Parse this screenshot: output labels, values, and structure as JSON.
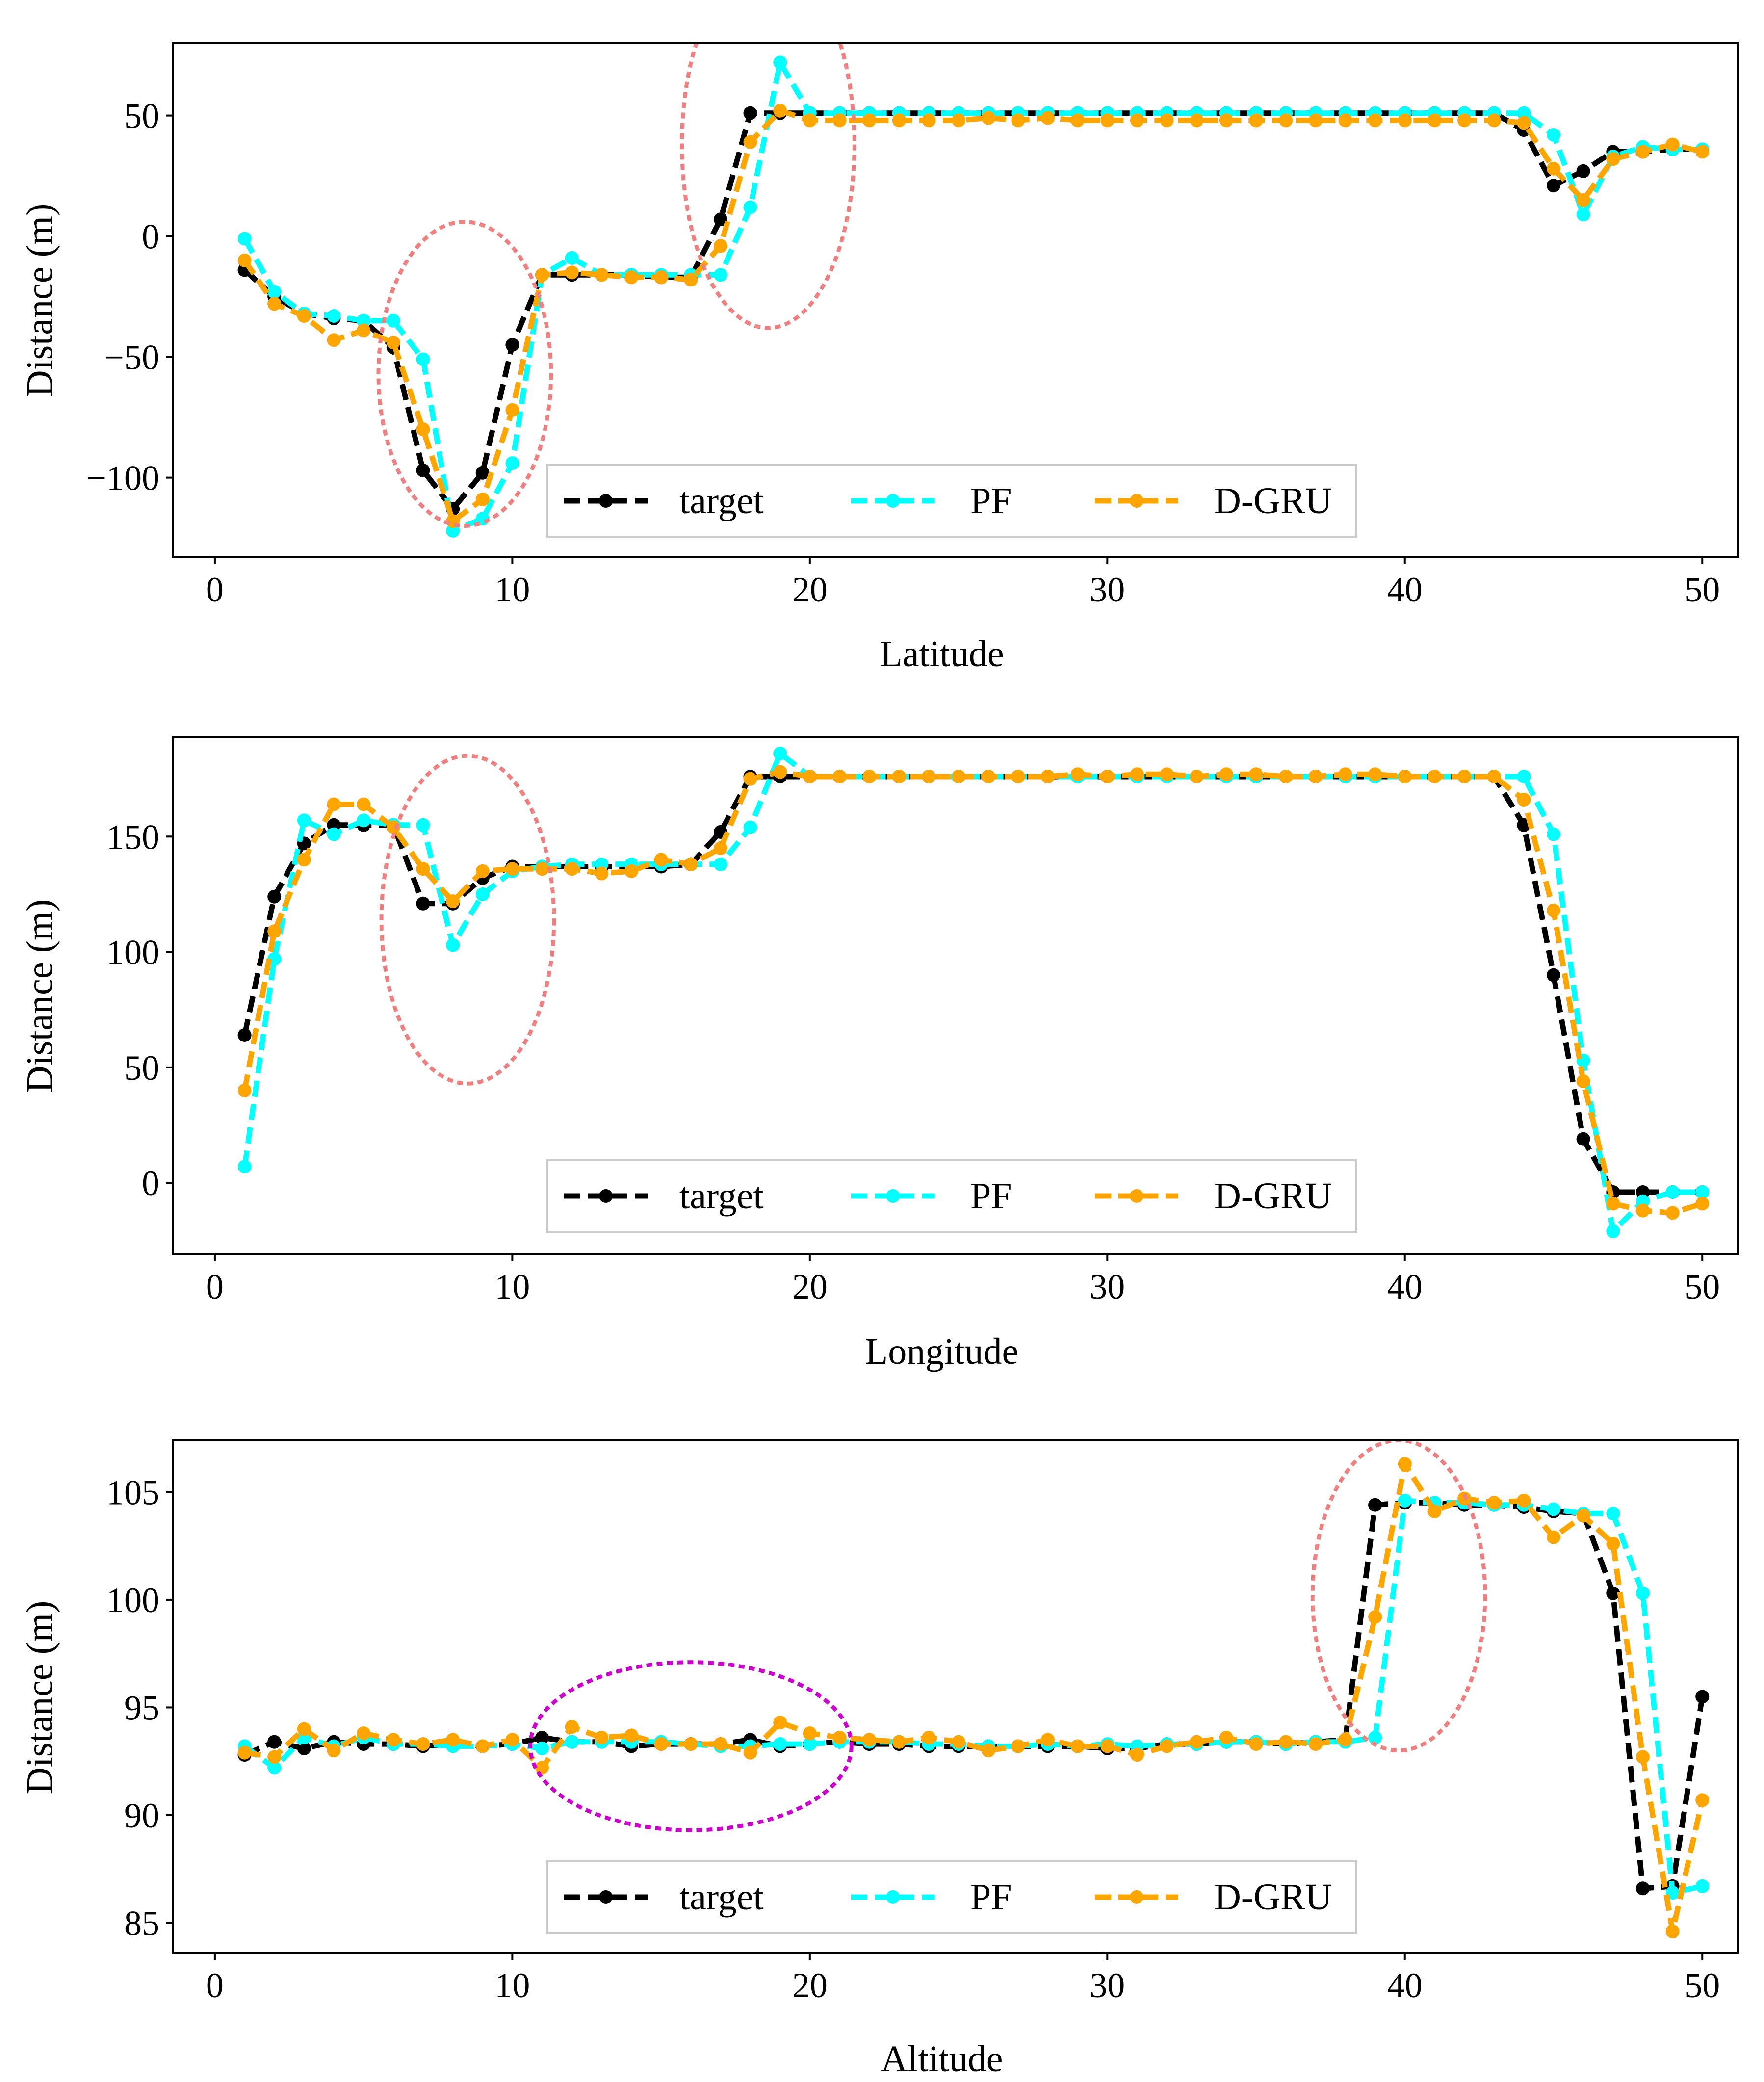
{
  "figure": {
    "colors": {
      "target": "#000000",
      "PF": "#00ffff",
      "D-GRU": "#ffa500",
      "ellipse_red": "#f08080",
      "ellipse_purple": "#cc00cc"
    },
    "panel_order": [
      "latitude",
      "longitude",
      "altitude"
    ]
  },
  "chart_data": [
    {
      "type": "line",
      "xlabel": "Latitude",
      "ylabel": "Distance (m)",
      "xlim": [
        -1.4,
        51.2
      ],
      "ylim": [
        -133,
        80
      ],
      "xticks": [
        0,
        10,
        20,
        30,
        40,
        50
      ],
      "xtick_labels": [
        "0",
        "10",
        "20",
        "30",
        "40",
        "50"
      ],
      "yticks": [
        -100,
        -50,
        0,
        50
      ],
      "ytick_labels": [
        "−100",
        "−50",
        "0",
        "50"
      ],
      "legend": {
        "position": "bottom-center",
        "entries": [
          "target",
          "PF",
          "D-GRU"
        ]
      },
      "x": [
        1,
        2,
        3,
        4,
        5,
        6,
        7,
        8,
        9,
        10,
        11,
        12,
        13,
        14,
        15,
        16,
        17,
        18,
        19,
        20,
        21,
        22,
        23,
        24,
        25,
        26,
        27,
        28,
        29,
        30,
        31,
        32,
        33,
        34,
        35,
        36,
        37,
        38,
        39,
        40,
        41,
        42,
        43,
        44,
        45,
        46,
        47,
        48,
        49,
        50
      ],
      "series": [
        {
          "name": "target",
          "color": "#000000",
          "values": [
            -14,
            -25,
            -32,
            -34,
            -35,
            -46,
            -97,
            -113,
            -98,
            -45,
            -16,
            -16,
            -16,
            -16,
            -17,
            -17,
            7,
            51,
            51,
            51,
            51,
            51,
            51,
            51,
            51,
            51,
            51,
            51,
            51,
            51,
            51,
            51,
            51,
            51,
            51,
            51,
            51,
            51,
            51,
            51,
            51,
            51,
            51,
            44,
            21,
            27,
            35,
            35,
            36,
            36
          ]
        },
        {
          "name": "PF",
          "color": "#00ffff",
          "values": [
            -1,
            -23,
            -32,
            -33,
            -35,
            -35,
            -51,
            -122,
            -117,
            -94,
            -16,
            -9,
            -16,
            -16,
            -16,
            -16,
            -16,
            12,
            72,
            51,
            51,
            51,
            51,
            51,
            51,
            51,
            51,
            51,
            51,
            51,
            51,
            51,
            51,
            51,
            51,
            51,
            51,
            51,
            51,
            51,
            51,
            51,
            51,
            51,
            42,
            9,
            33,
            37,
            36,
            36
          ]
        },
        {
          "name": "D-GRU",
          "color": "#ffa500",
          "values": [
            -10,
            -28,
            -33,
            -43,
            -39,
            -44,
            -80,
            -118,
            -109,
            -72,
            -16,
            -15,
            -16,
            -17,
            -17,
            -18,
            -4,
            39,
            52,
            48,
            48,
            48,
            48,
            48,
            48,
            49,
            48,
            49,
            48,
            48,
            48,
            48,
            48,
            48,
            48,
            48,
            48,
            48,
            48,
            48,
            48,
            48,
            48,
            47,
            28,
            15,
            32,
            35,
            38,
            35
          ]
        }
      ],
      "annotations": [
        {
          "shape": "ellipse",
          "color": "red",
          "cx": 8.4,
          "cy": -57,
          "rx": 2.9,
          "ry": 63
        },
        {
          "shape": "ellipse",
          "color": "red",
          "cx": 18.6,
          "cy": 38,
          "rx": 2.9,
          "ry": 76
        }
      ]
    },
    {
      "type": "line",
      "xlabel": "Longitude",
      "ylabel": "Distance (m)",
      "xlim": [
        -1.4,
        51.2
      ],
      "ylim": [
        -31,
        193
      ],
      "xticks": [
        0,
        10,
        20,
        30,
        40,
        50
      ],
      "xtick_labels": [
        "0",
        "10",
        "20",
        "30",
        "40",
        "50"
      ],
      "yticks": [
        0,
        50,
        100,
        150
      ],
      "ytick_labels": [
        "0",
        "50",
        "100",
        "150"
      ],
      "legend": {
        "position": "bottom-center",
        "entries": [
          "target",
          "PF",
          "D-GRU"
        ]
      },
      "x": [
        1,
        2,
        3,
        4,
        5,
        6,
        7,
        8,
        9,
        10,
        11,
        12,
        13,
        14,
        15,
        16,
        17,
        18,
        19,
        20,
        21,
        22,
        23,
        24,
        25,
        26,
        27,
        28,
        29,
        30,
        31,
        32,
        33,
        34,
        35,
        36,
        37,
        38,
        39,
        40,
        41,
        42,
        43,
        44,
        45,
        46,
        47,
        48,
        49,
        50
      ],
      "series": [
        {
          "name": "target",
          "color": "#000000",
          "values": [
            64,
            124,
            147,
            155,
            155,
            155,
            121,
            121,
            132,
            137,
            137,
            137,
            137,
            137,
            137,
            138,
            152,
            176,
            176,
            176,
            176,
            176,
            176,
            176,
            176,
            176,
            176,
            176,
            176,
            176,
            176,
            176,
            176,
            176,
            176,
            176,
            176,
            176,
            176,
            176,
            176,
            176,
            176,
            155,
            90,
            19,
            -4,
            -4,
            -4,
            -4
          ]
        },
        {
          "name": "PF",
          "color": "#00ffff",
          "values": [
            7,
            97,
            157,
            151,
            157,
            155,
            155,
            103,
            125,
            135,
            137,
            138,
            138,
            138,
            138,
            138,
            138,
            154,
            186,
            176,
            176,
            176,
            176,
            176,
            176,
            176,
            176,
            176,
            176,
            176,
            176,
            176,
            176,
            176,
            176,
            176,
            176,
            176,
            176,
            176,
            176,
            176,
            176,
            176,
            151,
            53,
            -21,
            -8,
            -4,
            -4
          ]
        },
        {
          "name": "D-GRU",
          "color": "#ffa500",
          "values": [
            40,
            109,
            140,
            164,
            164,
            154,
            136,
            122,
            135,
            136,
            136,
            136,
            134,
            135,
            140,
            138,
            145,
            175,
            178,
            176,
            176,
            176,
            176,
            176,
            176,
            176,
            176,
            176,
            177,
            176,
            177,
            177,
            176,
            177,
            177,
            176,
            176,
            177,
            177,
            176,
            176,
            176,
            176,
            166,
            118,
            44,
            -9,
            -12,
            -13,
            -9
          ]
        }
      ],
      "annotations": [
        {
          "shape": "ellipse",
          "color": "red",
          "cx": 8.5,
          "cy": 114,
          "rx": 2.9,
          "ry": 71
        }
      ]
    },
    {
      "type": "line",
      "xlabel": "Altitude",
      "ylabel": "Distance (m)",
      "xlim": [
        -1.4,
        51.2
      ],
      "ylim": [
        83.6,
        107.4
      ],
      "xticks": [
        0,
        10,
        20,
        30,
        40,
        50
      ],
      "xtick_labels": [
        "0",
        "10",
        "20",
        "30",
        "40",
        "50"
      ],
      "yticks": [
        85,
        90,
        95,
        100,
        105
      ],
      "ytick_labels": [
        "85",
        "90",
        "95",
        "100",
        "105"
      ],
      "legend": {
        "position": "bottom-center",
        "entries": [
          "target",
          "PF",
          "D-GRU"
        ]
      },
      "x": [
        1,
        2,
        3,
        4,
        5,
        6,
        7,
        8,
        9,
        10,
        11,
        12,
        13,
        14,
        15,
        16,
        17,
        18,
        19,
        20,
        21,
        22,
        23,
        24,
        25,
        26,
        27,
        28,
        29,
        30,
        31,
        32,
        33,
        34,
        35,
        36,
        37,
        38,
        39,
        40,
        41,
        42,
        43,
        44,
        45,
        46,
        47,
        48,
        49,
        50
      ],
      "series": [
        {
          "name": "target",
          "color": "#000000",
          "values": [
            92.8,
            93.4,
            93.1,
            93.4,
            93.3,
            93.3,
            93.2,
            93.3,
            93.2,
            93.3,
            93.6,
            93.4,
            93.4,
            93.2,
            93.3,
            93.3,
            93.3,
            93.5,
            93.2,
            93.3,
            93.4,
            93.3,
            93.3,
            93.2,
            93.2,
            93.2,
            93.2,
            93.2,
            93.2,
            93.1,
            93.1,
            93.3,
            93.3,
            93.4,
            93.4,
            93.3,
            93.4,
            93.5,
            104.4,
            104.5,
            104.5,
            104.4,
            104.4,
            104.3,
            104.1,
            104.0,
            100.3,
            86.6,
            86.7,
            95.5
          ]
        },
        {
          "name": "PF",
          "color": "#00ffff",
          "values": [
            93.2,
            92.2,
            93.6,
            93.2,
            93.6,
            93.3,
            93.3,
            93.2,
            93.2,
            93.3,
            93.1,
            93.4,
            93.4,
            93.4,
            93.4,
            93.3,
            93.2,
            93.2,
            93.3,
            93.3,
            93.4,
            93.4,
            93.4,
            93.3,
            93.3,
            93.2,
            93.2,
            93.3,
            93.2,
            93.3,
            93.2,
            93.3,
            93.3,
            93.4,
            93.4,
            93.3,
            93.4,
            93.4,
            93.6,
            104.6,
            104.5,
            104.5,
            104.4,
            104.4,
            104.2,
            104.0,
            104.0,
            100.3,
            86.4,
            86.7
          ]
        },
        {
          "name": "D-GRU",
          "color": "#ffa500",
          "values": [
            92.9,
            92.7,
            94.0,
            93.0,
            93.8,
            93.5,
            93.3,
            93.5,
            93.2,
            93.5,
            92.2,
            94.1,
            93.6,
            93.7,
            93.3,
            93.3,
            93.3,
            92.9,
            94.3,
            93.8,
            93.6,
            93.5,
            93.4,
            93.6,
            93.4,
            93.0,
            93.2,
            93.5,
            93.2,
            93.2,
            92.8,
            93.2,
            93.4,
            93.6,
            93.3,
            93.4,
            93.3,
            93.5,
            99.2,
            106.3,
            104.1,
            104.7,
            104.5,
            104.6,
            102.9,
            103.9,
            102.6,
            92.7,
            84.6,
            90.7
          ]
        }
      ],
      "annotations": [
        {
          "shape": "ellipse",
          "color": "red",
          "cx": 39.8,
          "cy": 100.2,
          "rx": 2.9,
          "ry": 7.2
        },
        {
          "shape": "ellipse",
          "color": "purple",
          "cx": 16.0,
          "cy": 93.2,
          "rx": 5.4,
          "ry": 3.9
        }
      ]
    }
  ]
}
